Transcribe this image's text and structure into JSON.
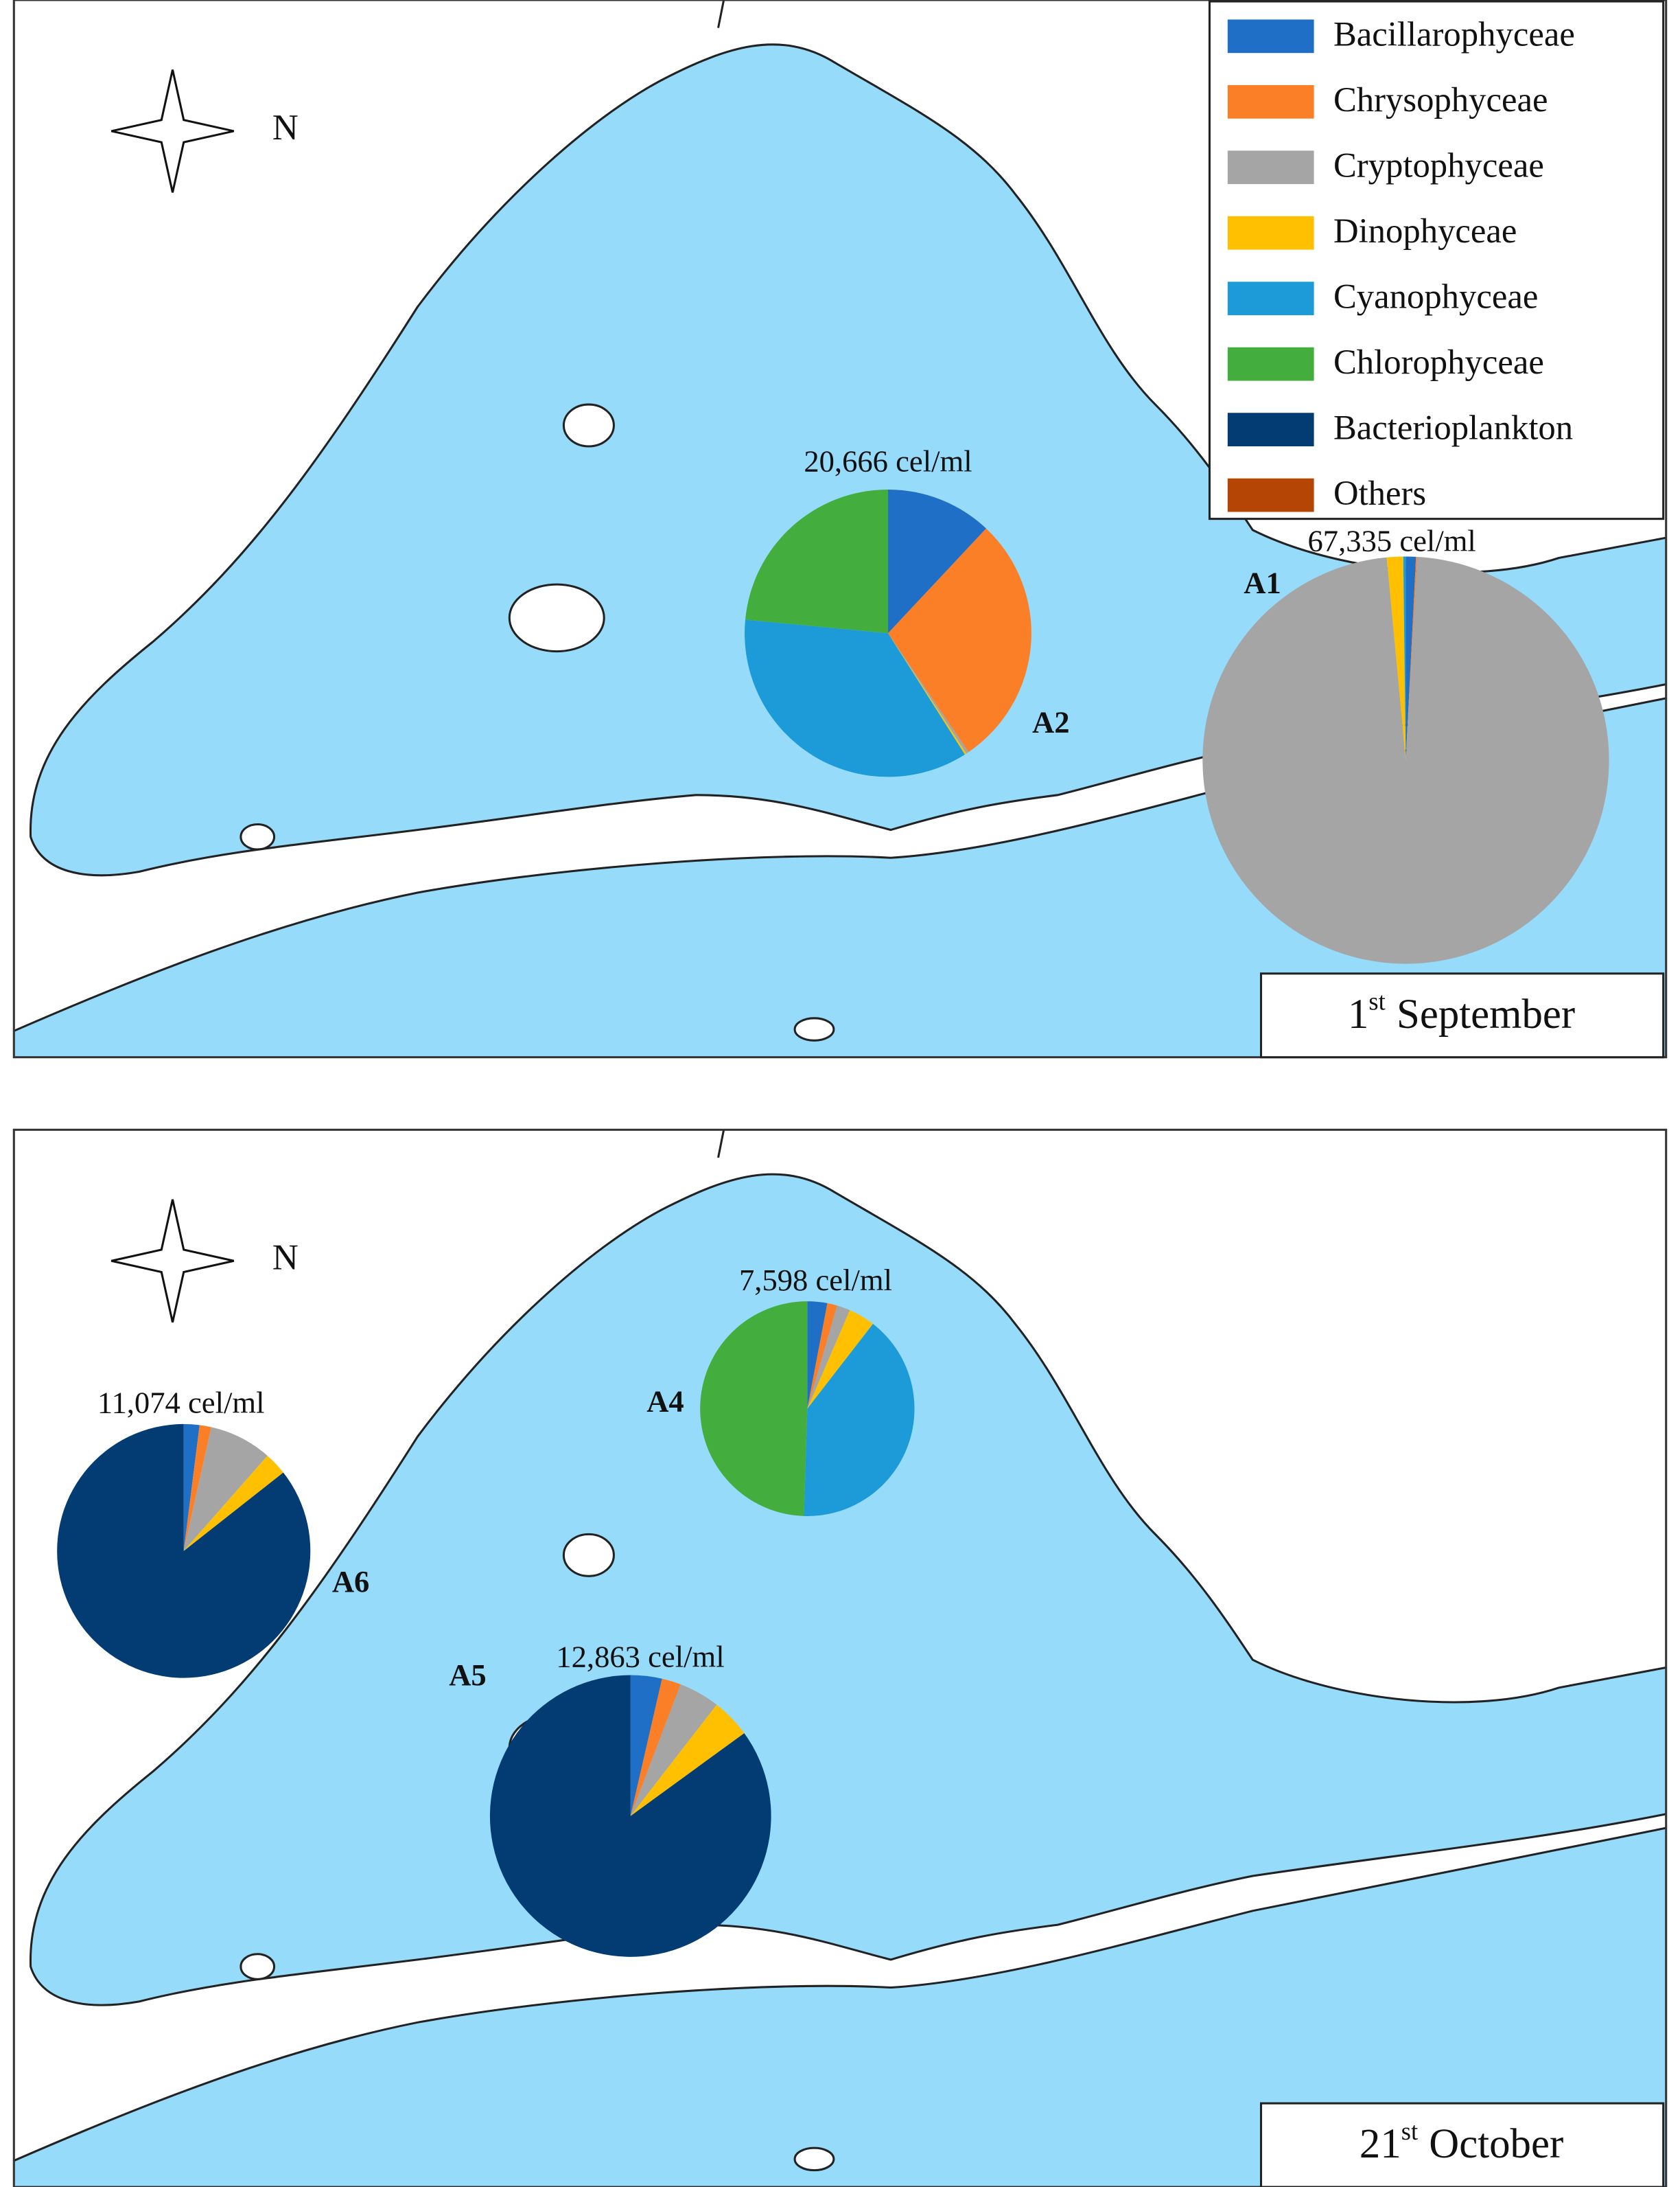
{
  "legend": {
    "items": [
      {
        "name": "Bacillarophyceae",
        "color": "#1f6fc6"
      },
      {
        "name": "Chrysophyceae",
        "color": "#fb7f26"
      },
      {
        "name": "Cryptophyceae",
        "color": "#a5a5a5"
      },
      {
        "name": "Dinophyceae",
        "color": "#fec000"
      },
      {
        "name": "Cyanophyceae",
        "color": "#1c9bd8"
      },
      {
        "name": "Chlorophyceae",
        "color": "#43ad3e"
      },
      {
        "name": "Bacterioplankton",
        "color": "#033c73"
      },
      {
        "name": "Others",
        "color": "#b54505"
      }
    ]
  },
  "panels": [
    {
      "compass_label": "N",
      "date": {
        "day": "1",
        "suffix": "st",
        "month": "September"
      },
      "sites": [
        {
          "label": "A2",
          "total_label": "20,666 cel/ml",
          "values": [
            12,
            28.5,
            0.3,
            0.2,
            35.5,
            23.5,
            0,
            0
          ]
        },
        {
          "label": "A1",
          "total_label": "67,335 cel/ml",
          "values": [
            0.8,
            0.1,
            97.6,
            1.3,
            0.2,
            0,
            0,
            0
          ]
        }
      ]
    },
    {
      "compass_label": "N",
      "date": {
        "day": "21",
        "suffix": "st",
        "month": "October"
      },
      "sites": [
        {
          "label": "A4",
          "total_label": "7,598 cel/ml",
          "values": [
            3,
            1.5,
            2,
            4,
            40,
            49.5,
            0,
            0
          ]
        },
        {
          "label": "A6",
          "total_label": "11,074 cel/ml",
          "values": [
            2,
            1.5,
            8,
            2.9,
            0,
            0,
            85.6,
            0
          ]
        },
        {
          "label": "A5",
          "total_label": "12,863 cel/ml",
          "values": [
            3.6,
            2.2,
            4.7,
            4.5,
            0,
            0,
            85,
            0
          ]
        }
      ]
    }
  ]
}
